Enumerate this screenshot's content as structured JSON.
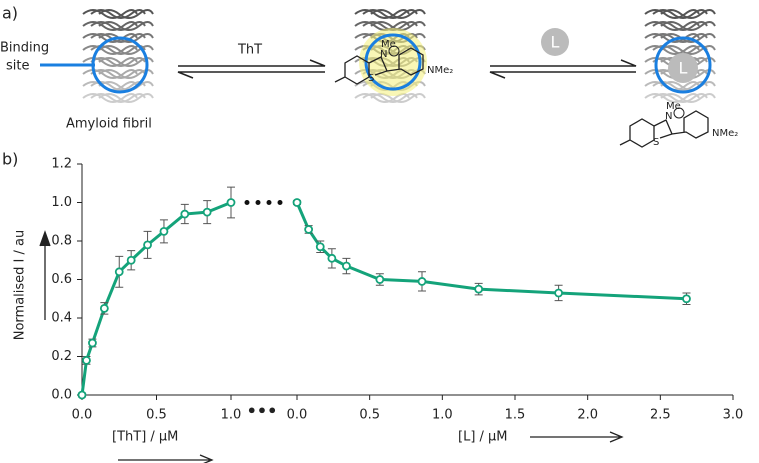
{
  "scheme": {
    "panel_label": "a)",
    "binding_site": [
      "Binding",
      "site"
    ],
    "arrow_label": "ThT",
    "fibril_label": "Amyloid fibril",
    "ligand": "L",
    "ligand_bound": "L",
    "dye_1": {
      "methyl": "Me",
      "nitrogen": "N",
      "sulfur": "S",
      "amine": "NMe₂"
    },
    "dye_2": {
      "methyl": "Me",
      "nitrogen": "N",
      "sulfur": "S",
      "amine": "NMe₂"
    }
  },
  "chart_data": {
    "type": "line",
    "panel_label": "b)",
    "ylabel": "Normalised I / au",
    "ylim": [
      0,
      1.2
    ],
    "yticks": [
      {
        "value": 0,
        "label": "0.0"
      },
      {
        "value": 0.2,
        "label": "0.2"
      },
      {
        "value": 0.4,
        "label": "0.4"
      },
      {
        "value": 0.6,
        "label": "0.6"
      },
      {
        "value": 0.8,
        "label": "0.8"
      },
      {
        "value": 1.0,
        "label": "1.0"
      },
      {
        "value": 1.2,
        "label": "1.2"
      }
    ],
    "break_label": "•••",
    "panels": [
      {
        "xlabel": "[ThT] / μM",
        "xlim": [
          0,
          1.0
        ],
        "xticks": [
          {
            "value": 0,
            "label": "0.0"
          },
          {
            "value": 0.5,
            "label": "0.5"
          },
          {
            "value": 1.0,
            "label": "1.0"
          }
        ],
        "series": [
          {
            "color": "#14a37a",
            "x": [
              0,
              0.03,
              0.07,
              0.15,
              0.25,
              0.33,
              0.44,
              0.55,
              0.69,
              0.84,
              1.0
            ],
            "values": [
              0,
              0.18,
              0.27,
              0.45,
              0.64,
              0.7,
              0.78,
              0.85,
              0.94,
              0.95,
              1.0
            ],
            "errors": [
              0.01,
              0.02,
              0.02,
              0.03,
              0.08,
              0.05,
              0.07,
              0.06,
              0.05,
              0.06,
              0.08
            ]
          }
        ]
      },
      {
        "xlabel": "[L] / μM",
        "xlim": [
          0,
          3.0
        ],
        "xticks": [
          {
            "value": 0,
            "label": "0.0"
          },
          {
            "value": 0.5,
            "label": "0.5"
          },
          {
            "value": 1.0,
            "label": "1.0"
          },
          {
            "value": 1.5,
            "label": "1.5"
          },
          {
            "value": 2.0,
            "label": "2.0"
          },
          {
            "value": 2.5,
            "label": "2.5"
          },
          {
            "value": 3.0,
            "label": "3.0"
          }
        ],
        "series": [
          {
            "color": "#14a37a",
            "x": [
              0,
              0.08,
              0.16,
              0.24,
              0.34,
              0.57,
              0.86,
              1.25,
              1.8,
              2.68
            ],
            "values": [
              1.0,
              0.86,
              0.77,
              0.71,
              0.67,
              0.6,
              0.59,
              0.55,
              0.53,
              0.5
            ],
            "errors": [
              0.01,
              0.02,
              0.03,
              0.05,
              0.04,
              0.03,
              0.05,
              0.03,
              0.04,
              0.03
            ]
          }
        ]
      }
    ]
  }
}
